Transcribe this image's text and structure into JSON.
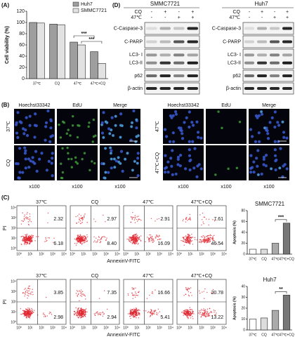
{
  "panel_labels": [
    "(A)",
    "(B)",
    "(C)",
    "(D)"
  ],
  "chart_data": [
    {
      "type": "bar",
      "ylabel": "Cell viability (%)",
      "categories": [
        "37℃",
        "CQ",
        "47℃",
        "47℃+CQ"
      ],
      "series": [
        {
          "name": "Huh7",
          "color": "#9e9e9e",
          "values": [
            100,
            97,
            65,
            48
          ]
        },
        {
          "name": "SMMC7721",
          "color": "#e2e2e2",
          "values": [
            99,
            96,
            60,
            27
          ]
        }
      ],
      "ylim": [
        0,
        120
      ],
      "yticks": [
        0,
        20,
        40,
        60,
        80,
        100,
        120
      ],
      "annotations": [
        "***",
        "***"
      ],
      "legend": "upper right"
    },
    {
      "type": "bar",
      "title": "SMMC7721",
      "ylabel": "Apoptosis (%)",
      "categories": [
        "37℃",
        "CQ",
        "47℃",
        "47℃+CQ"
      ],
      "values": [
        9,
        9,
        20,
        57
      ],
      "colors": [
        "#ffffff",
        "#dddddd",
        "#aaaaaa",
        "#777777"
      ],
      "ylim": [
        0,
        80
      ],
      "yticks": [
        0,
        20,
        40,
        60,
        80
      ],
      "annotations": [
        "***"
      ]
    },
    {
      "type": "bar",
      "title": "Huh7",
      "ylabel": "Apoptosis (%)",
      "categories": [
        "37℃",
        "CQ",
        "47℃",
        "47℃+CQ"
      ],
      "values": [
        10,
        11,
        18,
        32
      ],
      "colors": [
        "#ffffff",
        "#dddddd",
        "#aaaaaa",
        "#777777"
      ],
      "ylim": [
        0,
        40
      ],
      "yticks": [
        0,
        10,
        20,
        30,
        40
      ],
      "annotations": [
        "**"
      ]
    }
  ],
  "western_blot": {
    "treatments": [
      "CQ",
      "47℃"
    ],
    "blots": [
      {
        "cell_line": "SMMC7721",
        "signs": [
          [
            "-",
            "+",
            "-",
            "+"
          ],
          [
            "-",
            "-",
            "+",
            "+"
          ]
        ]
      },
      {
        "cell_line": "Huh7",
        "signs": [
          [
            "-",
            "+",
            "-",
            "+"
          ],
          [
            "-",
            "-",
            "+",
            "+"
          ]
        ]
      }
    ],
    "rows": [
      "C-Caspase-3",
      "C-PARP",
      "LC3- I",
      "LC3-II",
      "p62",
      "β-actin"
    ]
  },
  "microscopy": {
    "channels": [
      "Hoechst33342",
      "EdU",
      "Merge"
    ],
    "conditions": [
      "37℃",
      "CQ",
      "47℃",
      "47℃+CQ"
    ],
    "magnification": "x100"
  },
  "flow": {
    "ylabel": "PI",
    "xlabel": "AnnexinV-FITC",
    "ticks": [
      "10⁰",
      "10¹",
      "10²",
      "10³",
      "10⁴"
    ],
    "rows": [
      [
        {
          "condition": "37℃",
          "upper_right": "2.32",
          "lower_right": "6.18"
        },
        {
          "condition": "CQ",
          "upper_right": "2.97",
          "lower_right": "8.40"
        },
        {
          "condition": "47℃",
          "upper_right": "2.91",
          "lower_right": "16.09"
        },
        {
          "condition": "47℃+CQ",
          "upper_right": "7.61",
          "lower_right": "46.54"
        }
      ],
      [
        {
          "condition": "37℃",
          "upper_right": "3.85",
          "lower_right": "2.98"
        },
        {
          "condition": "CQ",
          "upper_right": "7.35",
          "lower_right": "2.94"
        },
        {
          "condition": "47℃",
          "upper_right": "16.66",
          "lower_right": "5.41"
        },
        {
          "condition": "47℃+CQ",
          "upper_right": "20.78",
          "lower_right": "13.22"
        }
      ]
    ]
  }
}
